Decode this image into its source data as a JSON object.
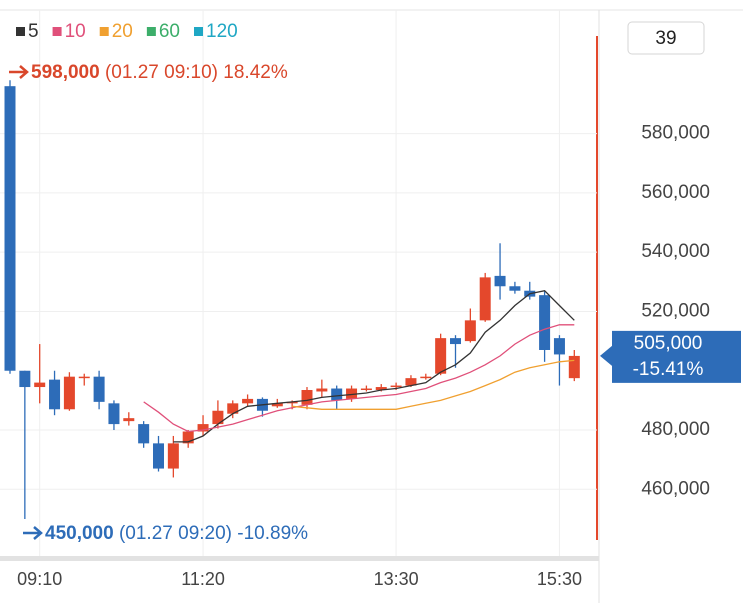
{
  "badge": "39",
  "chart_data": {
    "type": "candlestick",
    "categories": [
      null,
      null,
      "09:10",
      null,
      null,
      null,
      null,
      null,
      null,
      null,
      null,
      null,
      null,
      "11:20",
      null,
      null,
      null,
      null,
      null,
      null,
      null,
      null,
      null,
      null,
      null,
      null,
      "13:30",
      null,
      null,
      null,
      null,
      null,
      null,
      null,
      null,
      null,
      null,
      "15:30",
      null
    ],
    "open": [
      596000,
      500000,
      494500,
      497000,
      487000,
      497500,
      498000,
      489000,
      483000,
      482000,
      475500,
      467000,
      475500,
      479500,
      482000,
      485500,
      489000,
      490500,
      488000,
      489000,
      488500,
      493000,
      494000,
      490500,
      493500,
      493500,
      494500,
      495000,
      497500,
      499000,
      511000,
      510000,
      517000,
      532000,
      528500,
      527000,
      525500,
      511000,
      497500
    ],
    "high": [
      598000,
      500000,
      509000,
      500000,
      499500,
      499000,
      500000,
      490000,
      486000,
      483000,
      478000,
      478000,
      480000,
      485000,
      490000,
      490000,
      492000,
      491000,
      490500,
      490000,
      494500,
      497000,
      495000,
      495000,
      495000,
      495500,
      496000,
      498500,
      499000,
      512500,
      512000,
      521000,
      533000,
      543000,
      530000,
      530000,
      527000,
      512000,
      507000
    ],
    "low": [
      499000,
      450000,
      489000,
      485000,
      486500,
      495000,
      487000,
      480000,
      481500,
      474000,
      466000,
      464000,
      474000,
      478000,
      480500,
      484000,
      488000,
      484500,
      487500,
      487000,
      487000,
      491000,
      487000,
      489500,
      493000,
      493000,
      493500,
      494500,
      497000,
      498500,
      501000,
      509500,
      516500,
      524000,
      526000,
      524000,
      503000,
      495000,
      496500
    ],
    "close": [
      500000,
      494500,
      496000,
      487000,
      498000,
      498000,
      489500,
      482000,
      484000,
      475500,
      467000,
      475500,
      479500,
      482000,
      486500,
      489000,
      490500,
      486500,
      489000,
      489500,
      493500,
      494000,
      490000,
      494000,
      494000,
      494500,
      495000,
      497500,
      498000,
      511000,
      509000,
      517000,
      531500,
      528500,
      527000,
      525000,
      507000,
      505500,
      505000
    ],
    "up_color": "#e4482c",
    "down_color": "#2d6cb8",
    "moving_averages": [
      {
        "name": "5",
        "color": "#333333",
        "values": [
          null,
          null,
          null,
          null,
          null,
          null,
          null,
          null,
          null,
          null,
          null,
          476000,
          476000,
          478000,
          482000,
          485500,
          488000,
          488500,
          489000,
          489500,
          490000,
          491000,
          491500,
          492000,
          492500,
          493500,
          494000,
          495000,
          496000,
          499500,
          502000,
          506000,
          513000,
          517000,
          522000,
          526000,
          527000,
          522000,
          517000
        ]
      },
      {
        "name": "10",
        "color": "#e0507a",
        "values": [
          null,
          null,
          null,
          null,
          null,
          null,
          null,
          null,
          null,
          489500,
          486000,
          482000,
          479500,
          480000,
          481000,
          482000,
          483500,
          485000,
          486500,
          487500,
          488500,
          489500,
          490000,
          490500,
          491000,
          491500,
          492000,
          493000,
          494000,
          496000,
          497500,
          499500,
          502000,
          505000,
          509000,
          512000,
          514000,
          515500,
          515500
        ]
      },
      {
        "name": "20",
        "color": "#f0a030",
        "values": [
          null,
          null,
          null,
          null,
          null,
          null,
          null,
          null,
          null,
          null,
          null,
          null,
          null,
          null,
          null,
          null,
          null,
          null,
          null,
          488000,
          487500,
          487000,
          487000,
          487000,
          487000,
          487000,
          487000,
          488000,
          489000,
          490000,
          491500,
          493000,
          495000,
          497000,
          499500,
          501000,
          502000,
          503000,
          503500
        ]
      },
      {
        "name": "60",
        "color": "#3cae6a"
      },
      {
        "name": "120",
        "color": "#1fa7c4"
      }
    ],
    "ylim": [
      437500,
      621700
    ],
    "yticks": [
      {
        "value": 460000,
        "label": "460,000"
      },
      {
        "value": 480000,
        "label": "480,000"
      },
      {
        "value": 520000,
        "label": "520,000"
      },
      {
        "value": 540000,
        "label": "540,000"
      },
      {
        "value": 560000,
        "label": "560,000"
      },
      {
        "value": 580000,
        "label": "580,000"
      }
    ],
    "grid": true,
    "max_annotation": {
      "price": "598,000",
      "time": "(01.27 09:10)",
      "change": "18.42%"
    },
    "min_annotation": {
      "price": "450,000",
      "time": "(01.27 09:20)",
      "change": "-10.89%"
    },
    "last_price": {
      "price": "505,000",
      "change": "-15.41%"
    }
  }
}
